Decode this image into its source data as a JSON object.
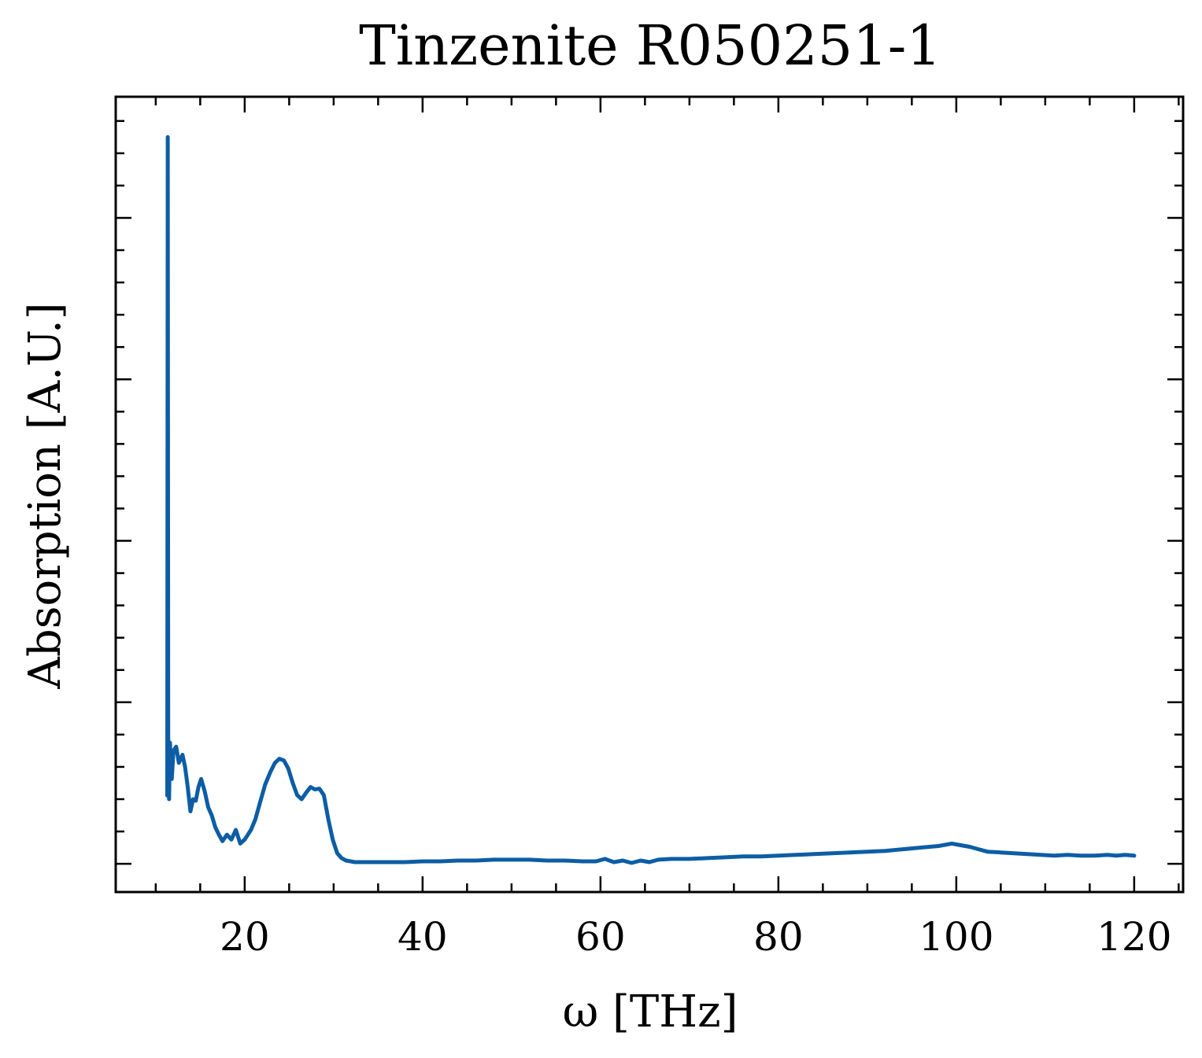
{
  "chart_data": {
    "type": "line",
    "title": "Tinzenite R050251-1",
    "xlabel": "ω [THz]",
    "ylabel": "Absorption [A.U.]",
    "xlim": [
      5.5,
      125.5
    ],
    "ylim": [
      -0.035,
      0.95
    ],
    "x_ticks": [
      20,
      40,
      60,
      80,
      100,
      120
    ],
    "x_tick_labels": [
      "20",
      "40",
      "60",
      "80",
      "100",
      "120"
    ],
    "y_ticks": [
      0,
      0.2,
      0.4,
      0.6,
      0.8
    ],
    "y_tick_labels_visible": false,
    "grid": false,
    "series": [
      {
        "color": "#0C5DA5",
        "x": [
          11.3,
          11.35,
          11.4,
          11.5,
          11.6,
          11.8,
          12.0,
          12.3,
          12.6,
          13.0,
          13.3,
          13.6,
          13.9,
          14.2,
          14.5,
          14.8,
          15.1,
          15.5,
          15.9,
          16.3,
          16.7,
          17.1,
          17.5,
          18.0,
          18.5,
          19.0,
          19.5,
          20.0,
          20.3,
          20.7,
          21.2,
          21.7,
          22.3,
          22.9,
          23.4,
          23.9,
          24.4,
          24.9,
          25.4,
          25.9,
          26.4,
          26.9,
          27.4,
          27.9,
          28.4,
          28.9,
          29.4,
          29.9,
          30.4,
          30.9,
          31.4,
          31.9,
          32.4,
          32.9,
          33.5,
          34.2,
          35.0,
          36.0,
          37.0,
          38.0,
          40.0,
          42.0,
          44.0,
          46.0,
          48.0,
          50.0,
          52.0,
          54.0,
          56.0,
          58.0,
          59.5,
          60.5,
          61.5,
          62.5,
          63.5,
          64.5,
          65.5,
          66.5,
          68.0,
          70.0,
          72.0,
          74.0,
          76.0,
          78.0,
          80.0,
          82.0,
          84.0,
          86.0,
          88.0,
          90.0,
          92.0,
          94.0,
          96.0,
          98.0,
          99.5,
          100.5,
          101.5,
          102.5,
          103.5,
          105.0,
          106.5,
          108.0,
          109.5,
          111.0,
          112.5,
          114.0,
          115.5,
          117.0,
          118.0,
          119.0,
          120.0
        ],
        "y": [
          0.0845,
          0.9,
          0.16,
          0.08,
          0.15,
          0.105,
          0.14,
          0.145,
          0.125,
          0.135,
          0.12,
          0.095,
          0.065,
          0.08,
          0.078,
          0.095,
          0.105,
          0.09,
          0.07,
          0.06,
          0.045,
          0.036,
          0.028,
          0.036,
          0.03,
          0.042,
          0.025,
          0.03,
          0.035,
          0.042,
          0.055,
          0.075,
          0.098,
          0.114,
          0.125,
          0.13,
          0.128,
          0.118,
          0.1,
          0.085,
          0.08,
          0.088,
          0.095,
          0.092,
          0.093,
          0.085,
          0.055,
          0.03,
          0.013,
          0.007,
          0.004,
          0.003,
          0.002,
          0.002,
          0.002,
          0.002,
          0.002,
          0.002,
          0.002,
          0.002,
          0.003,
          0.003,
          0.004,
          0.004,
          0.005,
          0.005,
          0.005,
          0.004,
          0.004,
          0.003,
          0.003,
          0.006,
          0.002,
          0.004,
          0.001,
          0.004,
          0.002,
          0.005,
          0.006,
          0.006,
          0.007,
          0.008,
          0.009,
          0.009,
          0.01,
          0.011,
          0.012,
          0.013,
          0.014,
          0.015,
          0.016,
          0.018,
          0.02,
          0.022,
          0.025,
          0.023,
          0.021,
          0.018,
          0.015,
          0.014,
          0.013,
          0.012,
          0.011,
          0.01,
          0.011,
          0.01,
          0.01,
          0.011,
          0.01,
          0.011,
          0.01
        ]
      }
    ]
  }
}
